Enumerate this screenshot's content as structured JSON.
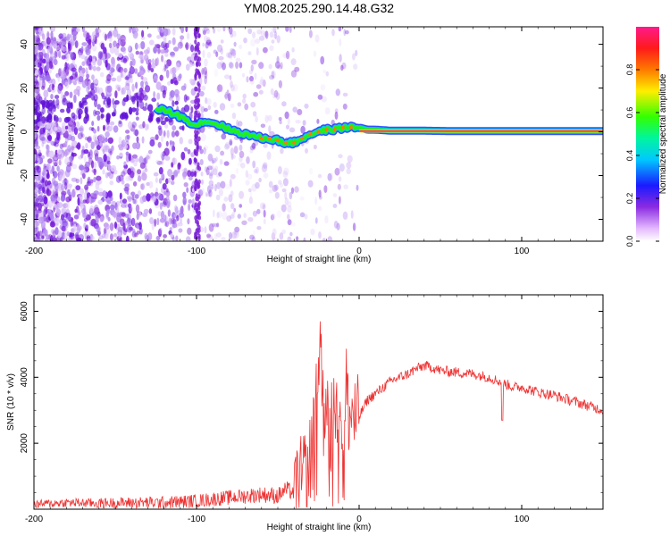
{
  "title": "YM08.2025.290.14.48.G32",
  "colors": {
    "line": "#ee3333",
    "axis": "#000000",
    "scatter": "#7a1fd6",
    "ridge_center": "#ff2060",
    "ridge_mid": "#22ee22",
    "ridge_edge": "#1a3cff"
  },
  "chart_data": [
    {
      "type": "heatmap",
      "title": "YM08.2025.290.14.48.G32",
      "xlabel": "Height of straight line (km)",
      "ylabel": "Frequency (Hz)",
      "xlim": [
        -200,
        150
      ],
      "ylim": [
        -50,
        48
      ],
      "xticks": [
        -200,
        -100,
        0,
        100
      ],
      "xtick_labels": [
        "-200",
        "-100",
        "0",
        "100"
      ],
      "yticks": [
        -40,
        -20,
        0,
        20,
        40
      ],
      "ytick_labels": [
        "-40",
        "-20",
        "0",
        "20",
        "40"
      ],
      "colorbar": {
        "label": "Normalized spectral amplitude",
        "range": [
          0,
          1
        ],
        "ticks": [
          0.0,
          0.2,
          0.4,
          0.6,
          0.8
        ],
        "tick_labels": [
          "0.0",
          "0.2",
          "0.4",
          "0.6",
          "0.8"
        ]
      },
      "ridge": {
        "x": [
          -120,
          -110,
          -100,
          -95,
          -90,
          -85,
          -80,
          -75,
          -70,
          -65,
          -60,
          -55,
          -50,
          -45,
          -40,
          -35,
          -30,
          -25,
          -20,
          -15,
          -10,
          -5,
          0,
          5,
          10,
          20,
          40,
          60,
          80,
          100,
          120,
          150
        ],
        "y": [
          10,
          7,
          3,
          5,
          4,
          3,
          1,
          0,
          -1,
          -2,
          -3,
          -3,
          -4,
          -5,
          -5,
          -3,
          -1,
          0,
          1,
          1,
          2,
          2,
          2,
          1,
          1,
          0.5,
          0.5,
          0.3,
          0.3,
          0.3,
          0.3,
          0.3
        ]
      }
    },
    {
      "type": "line",
      "xlabel": "Height of straight line (km)",
      "ylabel": "SNR (10 * v/v)",
      "xlim": [
        -200,
        150
      ],
      "ylim": [
        0,
        6500
      ],
      "xticks": [
        -200,
        -100,
        0,
        100
      ],
      "xtick_labels": [
        "-200",
        "-100",
        "0",
        "100"
      ],
      "yticks": [
        2000,
        4000,
        6000
      ],
      "ytick_labels": [
        "2000",
        "4000",
        "6000"
      ],
      "series": [
        {
          "name": "SNR",
          "x": [
            -200,
            -180,
            -160,
            -140,
            -120,
            -100,
            -90,
            -80,
            -70,
            -60,
            -50,
            -45,
            -40,
            -35,
            -30,
            -28,
            -26,
            -24,
            -22,
            -20,
            -18,
            -16,
            -14,
            -12,
            -10,
            -8,
            -6,
            -4,
            -2,
            0,
            5,
            10,
            15,
            20,
            25,
            30,
            35,
            40,
            45,
            50,
            60,
            70,
            80,
            85,
            90,
            95,
            100,
            110,
            120,
            130,
            140,
            150
          ],
          "y": [
            150,
            200,
            180,
            200,
            200,
            250,
            300,
            350,
            400,
            450,
            400,
            600,
            500,
            900,
            1500,
            2500,
            3200,
            5500,
            2800,
            3800,
            1800,
            3400,
            2400,
            4000,
            2200,
            3800,
            2700,
            3000,
            2600,
            2800,
            3300,
            3500,
            3700,
            3900,
            4000,
            4100,
            4250,
            4350,
            4300,
            4200,
            4150,
            4100,
            4000,
            3900,
            3800,
            3700,
            3700,
            3550,
            3450,
            3300,
            3150,
            3000
          ]
        }
      ]
    }
  ]
}
